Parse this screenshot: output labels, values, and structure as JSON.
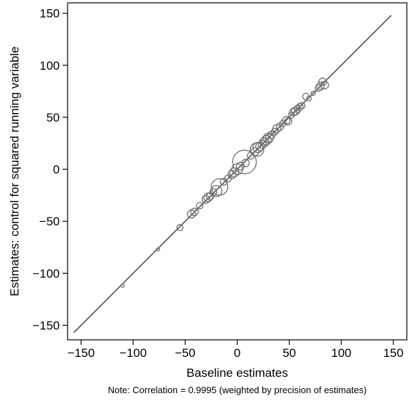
{
  "chart_data": {
    "type": "scatter",
    "title": "",
    "xlabel": "Baseline estimates",
    "ylabel": "Estimates: control for squared running variable",
    "note": "Note: Correlation = 0.9995 (weighted by precision of estimates)",
    "xlim": [
      -163,
      163
    ],
    "ylim": [
      -164,
      160
    ],
    "x_ticks": [
      -150,
      -100,
      -50,
      0,
      50,
      100,
      150
    ],
    "x_tick_labels": [
      "−150",
      "−100",
      "−50",
      "0",
      "50",
      "100",
      "150"
    ],
    "y_ticks": [
      -150,
      -100,
      -50,
      0,
      50,
      100,
      150
    ],
    "y_tick_labels": [
      "−150",
      "−100",
      "−50",
      "0",
      "50",
      "100",
      "150"
    ],
    "grid": false,
    "legend": "none",
    "reference_line": {
      "from": [
        -157,
        -157
      ],
      "to": [
        148,
        148
      ]
    },
    "marker_color": "#707070",
    "line_color": "#707070",
    "marker_size_meaning": "weighted by precision of estimates",
    "points": [
      {
        "x": -110,
        "y": -112,
        "w": 0.2
      },
      {
        "x": -76,
        "y": -77,
        "w": 0.2
      },
      {
        "x": -55,
        "y": -56,
        "w": 0.8
      },
      {
        "x": -44,
        "y": -43,
        "w": 1.4
      },
      {
        "x": -41,
        "y": -41,
        "w": 1.2
      },
      {
        "x": -36,
        "y": -35,
        "w": 0.9
      },
      {
        "x": -30,
        "y": -29,
        "w": 1.3
      },
      {
        "x": -28,
        "y": -27,
        "w": 1.6
      },
      {
        "x": -26,
        "y": -26,
        "w": 1.2
      },
      {
        "x": -23,
        "y": -22,
        "w": 1.0
      },
      {
        "x": -20,
        "y": -21,
        "w": 2.6
      },
      {
        "x": -17,
        "y": -17,
        "w": 5.8
      },
      {
        "x": -13,
        "y": -12,
        "w": 1.0
      },
      {
        "x": -9,
        "y": -9,
        "w": 1.0
      },
      {
        "x": -5,
        "y": -5,
        "w": 1.4
      },
      {
        "x": -3,
        "y": -3,
        "w": 1.8
      },
      {
        "x": 0,
        "y": 0,
        "w": 2.5
      },
      {
        "x": 3,
        "y": 3,
        "w": 1.3
      },
      {
        "x": 7,
        "y": 7,
        "w": 12.0
      },
      {
        "x": 8,
        "y": 6,
        "w": 1.2
      },
      {
        "x": 13,
        "y": 13,
        "w": 1.0
      },
      {
        "x": 17,
        "y": 17,
        "w": 1.4
      },
      {
        "x": 19,
        "y": 19,
        "w": 4.0
      },
      {
        "x": 20,
        "y": 21,
        "w": 2.2
      },
      {
        "x": 22,
        "y": 22,
        "w": 1.6
      },
      {
        "x": 24,
        "y": 24,
        "w": 1.4
      },
      {
        "x": 26,
        "y": 26,
        "w": 1.8
      },
      {
        "x": 28,
        "y": 28,
        "w": 2.0
      },
      {
        "x": 30,
        "y": 30,
        "w": 2.1
      },
      {
        "x": 31,
        "y": 30,
        "w": 1.4
      },
      {
        "x": 33,
        "y": 33,
        "w": 1.2
      },
      {
        "x": 36,
        "y": 36,
        "w": 1.0
      },
      {
        "x": 38,
        "y": 39,
        "w": 1.4
      },
      {
        "x": 41,
        "y": 41,
        "w": 1.1
      },
      {
        "x": 44,
        "y": 44,
        "w": 0.9
      },
      {
        "x": 47,
        "y": 47,
        "w": 1.3
      },
      {
        "x": 49,
        "y": 46,
        "w": 1.1
      },
      {
        "x": 52,
        "y": 52,
        "w": 0.8
      },
      {
        "x": 54,
        "y": 55,
        "w": 1.2
      },
      {
        "x": 56,
        "y": 56,
        "w": 1.4
      },
      {
        "x": 58,
        "y": 58,
        "w": 1.1
      },
      {
        "x": 60,
        "y": 60,
        "w": 1.0
      },
      {
        "x": 62,
        "y": 61,
        "w": 0.9
      },
      {
        "x": 66,
        "y": 70,
        "w": 0.9
      },
      {
        "x": 69,
        "y": 68,
        "w": 0.5
      },
      {
        "x": 73,
        "y": 73,
        "w": 0.4
      },
      {
        "x": 78,
        "y": 78,
        "w": 0.9
      },
      {
        "x": 80,
        "y": 80,
        "w": 1.3
      },
      {
        "x": 82,
        "y": 84,
        "w": 1.2
      },
      {
        "x": 84,
        "y": 81,
        "w": 1.3
      }
    ]
  }
}
